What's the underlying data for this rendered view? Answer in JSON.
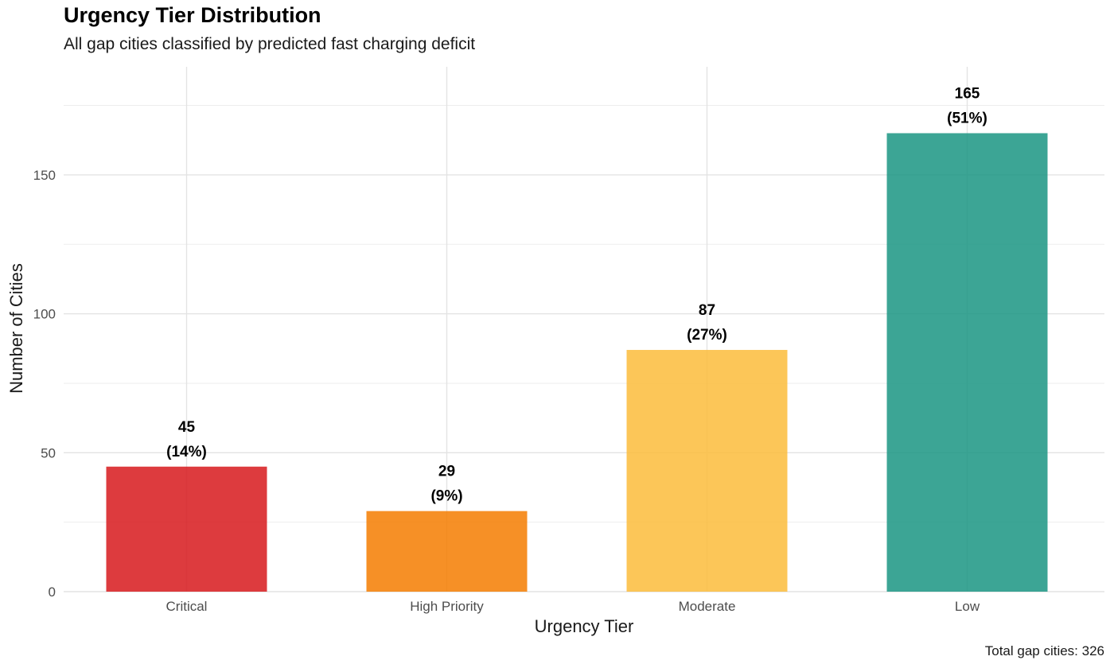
{
  "chart_data": {
    "type": "bar",
    "title": "Urgency Tier Distribution",
    "subtitle": "All gap cities classified by predicted fast charging deficit",
    "xlabel": "Urgency Tier",
    "ylabel": "Number of Cities",
    "categories": [
      "Critical",
      "High Priority",
      "Moderate",
      "Low"
    ],
    "values": [
      45,
      29,
      87,
      165
    ],
    "value_labels": [
      "45",
      "29",
      "87",
      "165"
    ],
    "percent_labels": [
      "(14%)",
      "(9%)",
      "(27%)",
      "(51%)"
    ],
    "colors": [
      "#d7191c",
      "#f47d00",
      "#fbbc3b",
      "#1a9582"
    ],
    "y_ticks": [
      0,
      50,
      100,
      150
    ],
    "ylim": [
      0,
      175
    ],
    "grid": true,
    "legend": "none",
    "caption": "Total gap cities: 326"
  }
}
